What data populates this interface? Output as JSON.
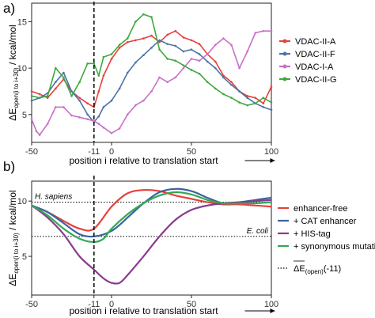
{
  "chart_data": [
    {
      "panel_label": "a)",
      "type": "line",
      "xlabel": "position i relative to translation start",
      "ylabel_main": "ΔE",
      "ylabel_subscript": "open(i to i+30)",
      "ylabel_tail": "/ kcal/mol",
      "xlim": [
        -50,
        100
      ],
      "ylim": [
        2,
        17
      ],
      "x_ticks": [
        -50,
        -11,
        0,
        50,
        100
      ],
      "y_ticks": [
        5,
        10,
        15
      ],
      "grid": false,
      "legend_position": "right",
      "vline_x": -11,
      "series": [
        {
          "name": "VDAC-II-A",
          "color": "#e8403a",
          "x": [
            -50,
            -45,
            -40,
            -35,
            -30,
            -25,
            -20,
            -15,
            -11,
            -8,
            -5,
            0,
            5,
            10,
            15,
            20,
            25,
            30,
            35,
            40,
            45,
            50,
            55,
            60,
            65,
            70,
            75,
            80,
            85,
            90,
            95,
            100
          ],
          "y": [
            7.5,
            7.2,
            6.8,
            7.8,
            8.8,
            7.5,
            6.8,
            6.2,
            5.8,
            7.5,
            9.2,
            11.0,
            12.2,
            12.8,
            13.0,
            13.2,
            13.5,
            12.8,
            13.6,
            14.0,
            13.3,
            13.0,
            12.6,
            11.5,
            10.7,
            9.2,
            8.5,
            7.5,
            7.0,
            6.8,
            6.2,
            8.0
          ]
        },
        {
          "name": "VDAC-II-F",
          "color": "#4a74a8",
          "x": [
            -50,
            -45,
            -40,
            -35,
            -30,
            -25,
            -20,
            -15,
            -11,
            -8,
            -5,
            0,
            5,
            10,
            15,
            20,
            25,
            30,
            35,
            40,
            45,
            50,
            55,
            60,
            65,
            70,
            75,
            80,
            85,
            90,
            95,
            100
          ],
          "y": [
            6.5,
            6.8,
            7.3,
            8.5,
            9.5,
            7.5,
            6.5,
            5.0,
            4.2,
            4.8,
            5.8,
            6.5,
            7.8,
            9.5,
            10.6,
            11.4,
            12.2,
            13.0,
            12.6,
            12.4,
            11.8,
            12.0,
            11.5,
            10.7,
            10.0,
            9.0,
            8.2,
            7.5,
            6.8,
            6.2,
            5.8,
            5.5
          ]
        },
        {
          "name": "VDAC-I-A",
          "color": "#c870c8",
          "x": [
            -50,
            -47,
            -45,
            -40,
            -35,
            -30,
            -25,
            -20,
            -15,
            -11,
            -8,
            -5,
            0,
            5,
            10,
            15,
            20,
            25,
            30,
            35,
            40,
            45,
            50,
            55,
            60,
            65,
            70,
            75,
            80,
            85,
            90,
            95,
            100
          ],
          "y": [
            4.5,
            3.2,
            2.8,
            4.0,
            5.8,
            5.8,
            4.9,
            4.7,
            4.5,
            4.3,
            4.0,
            3.6,
            3.0,
            3.5,
            5.0,
            6.0,
            6.5,
            7.5,
            9.0,
            8.5,
            9.0,
            10.0,
            11.0,
            10.8,
            11.5,
            12.5,
            13.2,
            12.5,
            10.0,
            11.8,
            13.8,
            14.0,
            14.0
          ]
        },
        {
          "name": "VDAC-II-G",
          "color": "#3fa83f",
          "x": [
            -50,
            -45,
            -40,
            -35,
            -30,
            -25,
            -20,
            -15,
            -11,
            -8,
            -5,
            0,
            5,
            10,
            15,
            20,
            25,
            30,
            35,
            40,
            45,
            50,
            55,
            60,
            65,
            70,
            75,
            80,
            85,
            90,
            95,
            100
          ],
          "y": [
            7.0,
            6.8,
            7.0,
            10.0,
            9.0,
            7.0,
            8.5,
            10.5,
            10.5,
            9.2,
            11.2,
            11.5,
            12.5,
            13.2,
            15.0,
            15.8,
            15.5,
            12.0,
            11.0,
            10.8,
            10.3,
            9.8,
            9.4,
            8.5,
            7.8,
            7.2,
            6.8,
            6.3,
            6.0,
            6.2,
            6.8,
            6.3
          ]
        }
      ]
    },
    {
      "panel_label": "b)",
      "type": "line",
      "xlabel": "position i relative to translation start",
      "ylabel_main": "ΔE",
      "ylabel_subscript": "open(i to i+30)",
      "ylabel_tail": "/ kcal/mol",
      "xlim": [
        -50,
        100
      ],
      "ylim": [
        1.5,
        11.8
      ],
      "x_ticks": [
        -50,
        -11,
        0,
        50,
        100
      ],
      "y_ticks": [
        5,
        10
      ],
      "grid": false,
      "legend_position": "right",
      "vline_x": -11,
      "hlines": [
        {
          "y": 9.9,
          "label": "H. sapiens"
        },
        {
          "y": 6.8,
          "label": "E. coli"
        }
      ],
      "series": [
        {
          "name": "enhancer-free",
          "color": "#e8403a",
          "x": [
            -50,
            -40,
            -30,
            -20,
            -11,
            0,
            10,
            20,
            30,
            40,
            50,
            60,
            70,
            80,
            90,
            100
          ],
          "y": [
            9.6,
            9.0,
            8.2,
            7.5,
            7.5,
            9.5,
            10.7,
            11.0,
            10.9,
            10.5,
            10.2,
            9.9,
            9.7,
            9.7,
            9.6,
            9.5
          ]
        },
        {
          "name": "+ CAT enhancer",
          "color": "#3a63a0",
          "x": [
            -50,
            -40,
            -30,
            -20,
            -11,
            0,
            10,
            20,
            30,
            40,
            50,
            60,
            70,
            80,
            90,
            100
          ],
          "y": [
            9.6,
            9.0,
            8.0,
            7.0,
            6.8,
            7.3,
            8.5,
            9.8,
            10.8,
            11.1,
            10.9,
            10.3,
            9.8,
            9.9,
            10.1,
            10.3
          ]
        },
        {
          "name": "+ HIS-tag",
          "color": "#8a3a8e",
          "x": [
            -50,
            -40,
            -30,
            -20,
            -11,
            -5,
            0,
            5,
            10,
            20,
            30,
            40,
            50,
            60,
            70,
            80,
            90,
            100
          ],
          "y": [
            9.6,
            8.5,
            7.0,
            5.0,
            3.8,
            3.0,
            2.6,
            2.6,
            3.3,
            5.0,
            6.8,
            8.3,
            9.2,
            9.6,
            9.8,
            9.9,
            10.0,
            10.1
          ]
        },
        {
          "name": "+ synonymous mutations",
          "color": "#34a853",
          "x": [
            -50,
            -40,
            -30,
            -20,
            -11,
            -5,
            0,
            10,
            20,
            30,
            40,
            50,
            60,
            70,
            80,
            90,
            100
          ],
          "y": [
            9.6,
            8.7,
            7.5,
            6.6,
            6.3,
            6.6,
            7.5,
            8.8,
            9.8,
            10.5,
            10.8,
            10.6,
            10.1,
            9.8,
            9.8,
            9.8,
            9.9
          ]
        }
      ],
      "legend_extra": {
        "label_main": "ΔE",
        "label_sub": "(open)",
        "label_tail": "(-11)",
        "style": "dotted"
      }
    }
  ]
}
